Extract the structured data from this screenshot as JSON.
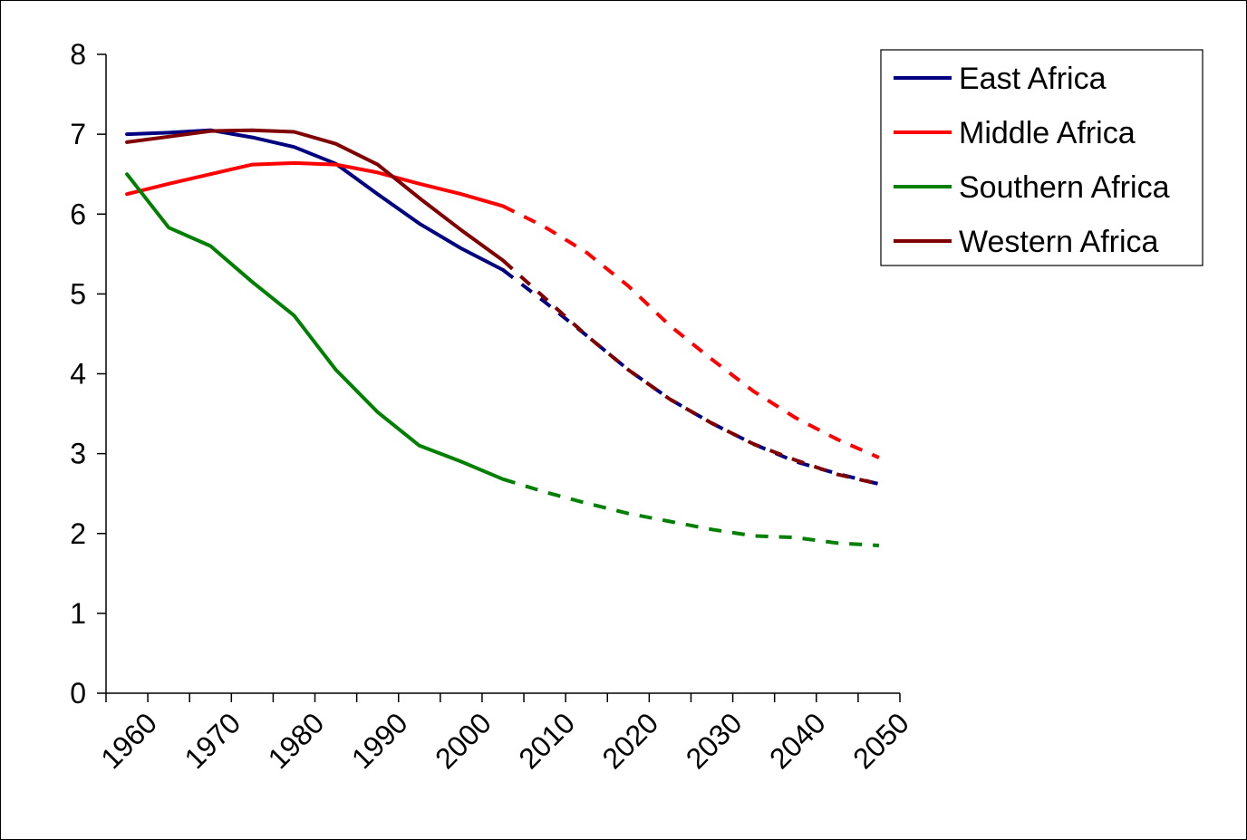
{
  "chart_data": {
    "type": "line",
    "title": "",
    "xlabel": "",
    "ylabel": "",
    "xlim": [
      1955,
      2050
    ],
    "ylim": [
      0,
      8
    ],
    "yticks": [
      "0",
      "1",
      "2",
      "3",
      "4",
      "5",
      "6",
      "7",
      "8"
    ],
    "xtick_labels": [
      "1960",
      "1970",
      "1980",
      "1990",
      "2000",
      "2010",
      "2020",
      "2030",
      "2040",
      "2050"
    ],
    "grid": false,
    "legend_position": "top-right",
    "observed_until": 2002.5,
    "series": [
      {
        "name": "East Africa",
        "color": "#000080",
        "x": [
          1957.5,
          1962.5,
          1967.5,
          1972.5,
          1977.5,
          1982.5,
          1987.5,
          1992.5,
          1997.5,
          2002.5,
          2007.5,
          2012.5,
          2017.5,
          2022.5,
          2027.5,
          2032.5,
          2037.5,
          2042.5,
          2047.5
        ],
        "values": [
          7.0,
          7.02,
          7.05,
          6.96,
          6.84,
          6.63,
          6.25,
          5.88,
          5.57,
          5.3,
          4.9,
          4.48,
          4.05,
          3.68,
          3.38,
          3.12,
          2.9,
          2.75,
          2.62
        ]
      },
      {
        "name": "Middle Africa",
        "color": "#ff0000",
        "x": [
          1957.5,
          1962.5,
          1967.5,
          1972.5,
          1977.5,
          1982.5,
          1987.5,
          1992.5,
          1997.5,
          2002.5,
          2007.5,
          2012.5,
          2017.5,
          2022.5,
          2027.5,
          2032.5,
          2037.5,
          2042.5,
          2047.5
        ],
        "values": [
          6.25,
          6.38,
          6.5,
          6.62,
          6.64,
          6.62,
          6.52,
          6.38,
          6.25,
          6.1,
          5.84,
          5.52,
          5.1,
          4.6,
          4.18,
          3.78,
          3.45,
          3.18,
          2.95
        ]
      },
      {
        "name": "Southern Africa",
        "color": "#008000",
        "x": [
          1957.5,
          1962.5,
          1967.5,
          1972.5,
          1977.5,
          1982.5,
          1987.5,
          1992.5,
          1997.5,
          2002.5,
          2007.5,
          2012.5,
          2017.5,
          2022.5,
          2027.5,
          2032.5,
          2037.5,
          2042.5,
          2047.5
        ],
        "values": [
          6.5,
          5.83,
          5.6,
          5.15,
          4.73,
          4.05,
          3.52,
          3.1,
          2.9,
          2.68,
          2.52,
          2.38,
          2.25,
          2.15,
          2.05,
          1.97,
          1.95,
          1.88,
          1.85
        ]
      },
      {
        "name": "Western Africa",
        "color": "#800000",
        "x": [
          1957.5,
          1962.5,
          1967.5,
          1972.5,
          1977.5,
          1982.5,
          1987.5,
          1992.5,
          1997.5,
          2002.5,
          2007.5,
          2012.5,
          2017.5,
          2022.5,
          2027.5,
          2032.5,
          2037.5,
          2042.5,
          2047.5
        ],
        "values": [
          6.9,
          6.97,
          7.04,
          7.05,
          7.03,
          6.88,
          6.62,
          6.2,
          5.8,
          5.42,
          4.95,
          4.48,
          4.05,
          3.68,
          3.38,
          3.12,
          2.92,
          2.74,
          2.62
        ]
      }
    ]
  }
}
